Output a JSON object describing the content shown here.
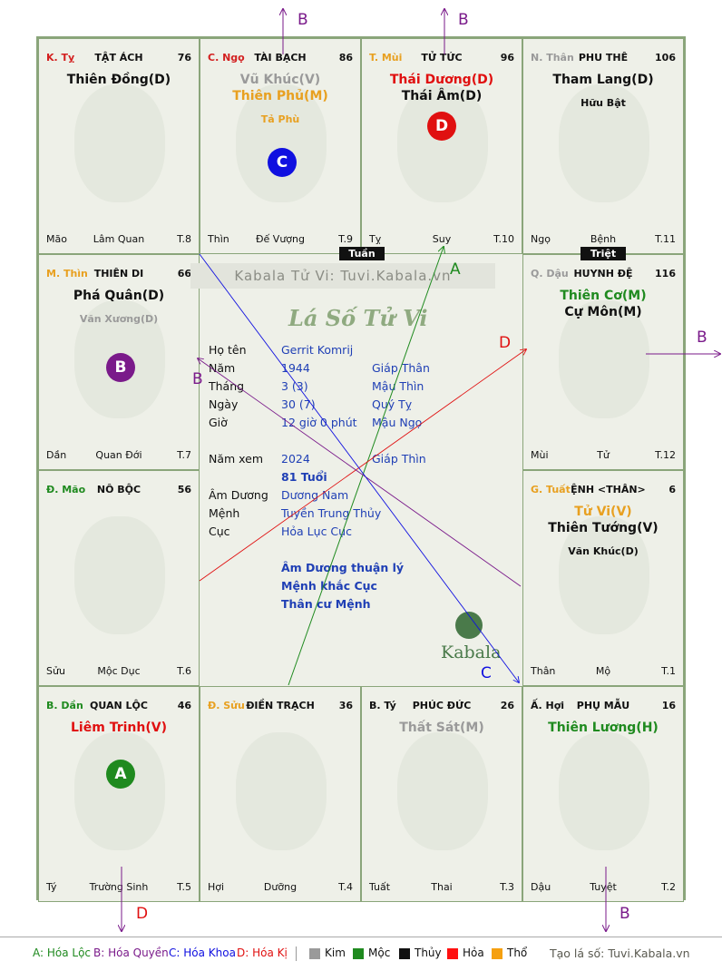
{
  "palaces": [
    {
      "id": "ty",
      "can": "K. Tỵ",
      "can_color": "#d32020",
      "name": "TẬT ÁCH",
      "num": "76",
      "major": [
        {
          "text": "Thiên Đồng(D)",
          "color": "#111"
        }
      ],
      "minor": [],
      "bot_left": "Mão",
      "bot_mid": "Lâm Quan",
      "bot_right": "T.8"
    },
    {
      "id": "ngo",
      "can": "C. Ngọ",
      "can_color": "#d32020",
      "name": "TÀI BẠCH",
      "num": "86",
      "major": [
        {
          "text": "Vũ Khúc(V)",
          "color": "#9a9a9a"
        },
        {
          "text": "Thiên Phủ(M)",
          "color": "#e8a020"
        }
      ],
      "minor": [
        {
          "text": "Tả Phù",
          "color": "#e8a020"
        }
      ],
      "bot_left": "Thìn",
      "bot_mid": "Đế Vượng",
      "bot_right": "T.9"
    },
    {
      "id": "mui",
      "can": "T. Mùi",
      "can_color": "#e8a020",
      "name": "TỬ TỨC",
      "num": "96",
      "major": [
        {
          "text": "Thái Dương(D)",
          "color": "#e01010"
        },
        {
          "text": "Thái Âm(D)",
          "color": "#111"
        }
      ],
      "minor": [],
      "bot_left": "Tỵ",
      "bot_mid": "Suy",
      "bot_right": "T.10"
    },
    {
      "id": "than",
      "can": "N. Thân",
      "can_color": "#9a9a9a",
      "name": "PHU THÊ",
      "num": "106",
      "major": [
        {
          "text": "Tham Lang(D)",
          "color": "#111"
        }
      ],
      "minor": [
        {
          "text": "Hữu Bật",
          "color": "#111"
        }
      ],
      "bot_left": "Ngọ",
      "bot_mid": "Bệnh",
      "bot_right": "T.11"
    },
    {
      "id": "thin",
      "can": "M. Thìn",
      "can_color": "#e8a020",
      "name": "THIÊN DI",
      "num": "66",
      "major": [
        {
          "text": "Phá Quân(D)",
          "color": "#111"
        }
      ],
      "minor": [
        {
          "text": "Văn Xương(D)",
          "color": "#9a9a9a"
        }
      ],
      "bot_left": "Dần",
      "bot_mid": "Quan Đới",
      "bot_right": "T.7"
    },
    {
      "id": "dau",
      "can": "Q. Dậu",
      "can_color": "#9a9a9a",
      "name": "HUYNH ĐỆ",
      "num": "116",
      "major": [
        {
          "text": "Thiên Cơ(M)",
          "color": "#1f8a1f"
        },
        {
          "text": "Cự Môn(M)",
          "color": "#111"
        }
      ],
      "minor": [],
      "bot_left": "Mùi",
      "bot_mid": "Tử",
      "bot_right": "T.12"
    },
    {
      "id": "mao",
      "can": "Đ. Mão",
      "can_color": "#1f8a1f",
      "name": "NÔ BỘC",
      "num": "56",
      "major": [],
      "minor": [],
      "bot_left": "Sửu",
      "bot_mid": "Mộc Dục",
      "bot_right": "T.6"
    },
    {
      "id": "tuat",
      "can": "G. Tuất",
      "can_color": "#e8a020",
      "name": "MỆNH <THÂN>",
      "num": "6",
      "major": [
        {
          "text": "Tử Vi(V)",
          "color": "#e8a020"
        },
        {
          "text": "Thiên Tướng(V)",
          "color": "#111"
        }
      ],
      "minor": [
        {
          "text": "Văn Khúc(D)",
          "color": "#111"
        }
      ],
      "bot_left": "Thân",
      "bot_mid": "Mộ",
      "bot_right": "T.1"
    },
    {
      "id": "dan",
      "can": "B. Dần",
      "can_color": "#1f8a1f",
      "name": "QUAN LỘC",
      "num": "46",
      "major": [
        {
          "text": "Liêm Trinh(V)",
          "color": "#e01010"
        }
      ],
      "minor": [],
      "bot_left": "Tý",
      "bot_mid": "Trường Sinh",
      "bot_right": "T.5"
    },
    {
      "id": "suu",
      "can": "Đ. Sửu",
      "can_color": "#e8a020",
      "name": "ĐIỀN TRẠCH",
      "num": "36",
      "major": [],
      "minor": [],
      "bot_left": "Hợi",
      "bot_mid": "Dưỡng",
      "bot_right": "T.4"
    },
    {
      "id": "ty2",
      "can": "B. Tý",
      "can_color": "#111",
      "name": "PHÚC ĐỨC",
      "num": "26",
      "major": [
        {
          "text": "Thất Sát(M)",
          "color": "#9a9a9a"
        }
      ],
      "minor": [],
      "bot_left": "Tuất",
      "bot_mid": "Thai",
      "bot_right": "T.3"
    },
    {
      "id": "hoi",
      "can": "Ấ. Hợi",
      "can_color": "#111",
      "name": "PHỤ MẪU",
      "num": "16",
      "major": [
        {
          "text": "Thiên Lương(H)",
          "color": "#1f8a1f"
        }
      ],
      "minor": [],
      "bot_left": "Dậu",
      "bot_mid": "Tuyệt",
      "bot_right": "T.2"
    }
  ],
  "badges": [
    {
      "palace": "ngo",
      "letter": "C",
      "color": "#1010e0"
    },
    {
      "palace": "mui",
      "letter": "D",
      "color": "#e01010"
    },
    {
      "palace": "thin",
      "letter": "B",
      "color": "#7a1a8a"
    },
    {
      "palace": "dan",
      "letter": "A",
      "color": "#1f8a1f"
    }
  ],
  "tags": {
    "tuan": "Tuần",
    "triet": "Triệt"
  },
  "center": {
    "watermark": "Kabala Tử Vi: Tuvi.Kabala.vn",
    "title": "Lá Số Tử Vi",
    "ho_ten_label": "Họ tên",
    "ho_ten": "Gerrit Komrij",
    "nam_label": "Năm",
    "nam": "1944",
    "nam_can": "Giáp Thân",
    "thang_label": "Tháng",
    "thang": "3  (3)",
    "thang_can": "Mậu Thìn",
    "ngay_label": "Ngày",
    "ngay": "30  (7)",
    "ngay_can": "Quý Tỵ",
    "gio_label": "Giờ",
    "gio": "12 giờ 0 phút",
    "gio_can": "Mậu Ngọ",
    "namxem_label": "Năm xem",
    "namxem": "2024",
    "namxem_can": "Giáp Thìn",
    "tuoi": "81 Tuổi",
    "amduong_label": "Âm Dương",
    "amduong": "Dương Nam",
    "menh_label": "Mệnh",
    "menh": "Tuyền Trung Thủy",
    "cuc_label": "Cục",
    "cuc": "Hỏa Lục Cục",
    "note1": "Âm Dương thuận lý",
    "note2": "Mệnh khắc Cục",
    "note3": "Thân cư Mệnh",
    "logo": "Kabala"
  },
  "arrow_labels": {
    "top_b1": "B",
    "top_b2": "B",
    "right_b": "B",
    "bottom_d": "D",
    "bottom_b": "B",
    "a": "A",
    "d": "D",
    "b": "B",
    "c": "C"
  },
  "legend": {
    "a": "A: Hóa Lộc",
    "b": "B: Hóa Quyền",
    "c": "C: Hóa Khoa",
    "d": "D: Hóa Kị",
    "kim": "Kim",
    "moc": "Mộc",
    "thuy": "Thủy",
    "hoa": "Hỏa",
    "tho": "Thổ",
    "site": "Tạo lá số: Tuvi.Kabala.vn"
  },
  "colors": {
    "kim": "#9a9a9a",
    "moc": "#1f8a1f",
    "thuy": "#111111",
    "hoa": "#ff1010",
    "tho": "#f5a010"
  }
}
